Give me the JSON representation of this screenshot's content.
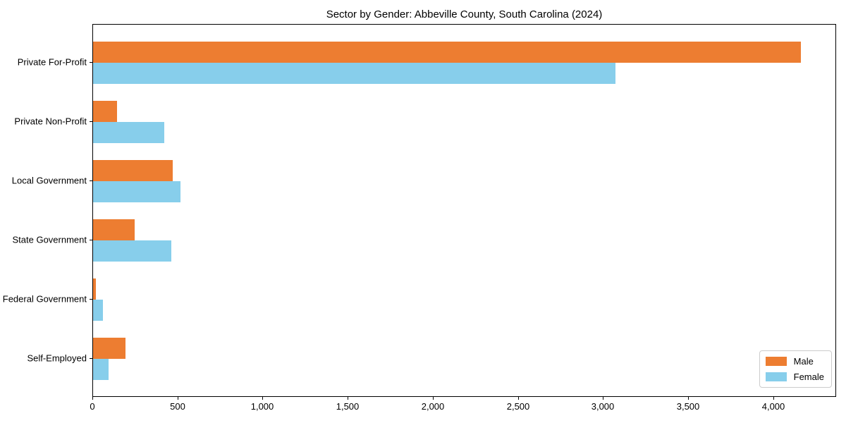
{
  "figure": {
    "background_color": "#ffffff"
  },
  "chart_data": {
    "type": "bar",
    "orientation": "horizontal",
    "title": "Sector by Gender: Abbeville County, South Carolina (2024)",
    "xlabel": "",
    "ylabel": "",
    "categories": [
      "Private For-Profit",
      "Private Non-Profit",
      "Local Government",
      "State Government",
      "Federal Government",
      "Self-Employed"
    ],
    "series": [
      {
        "name": "Male",
        "color": "#ED7D31",
        "values": [
          4160,
          140,
          470,
          245,
          15,
          190
        ]
      },
      {
        "name": "Female",
        "color": "#87CEEB",
        "values": [
          3070,
          420,
          515,
          460,
          60,
          90
        ]
      }
    ],
    "xlim": [
      0,
      4370
    ],
    "x_ticks": [
      {
        "value": 0,
        "label": "0"
      },
      {
        "value": 500,
        "label": "500"
      },
      {
        "value": 1000,
        "label": "1,000"
      },
      {
        "value": 1500,
        "label": "1,500"
      },
      {
        "value": 2000,
        "label": "2,000"
      },
      {
        "value": 2500,
        "label": "2,500"
      },
      {
        "value": 3000,
        "label": "3,000"
      },
      {
        "value": 3500,
        "label": "3,500"
      },
      {
        "value": 4000,
        "label": "4,000"
      }
    ],
    "grid": false,
    "legend": {
      "position": "lower right",
      "entries": [
        "Male",
        "Female"
      ]
    }
  }
}
